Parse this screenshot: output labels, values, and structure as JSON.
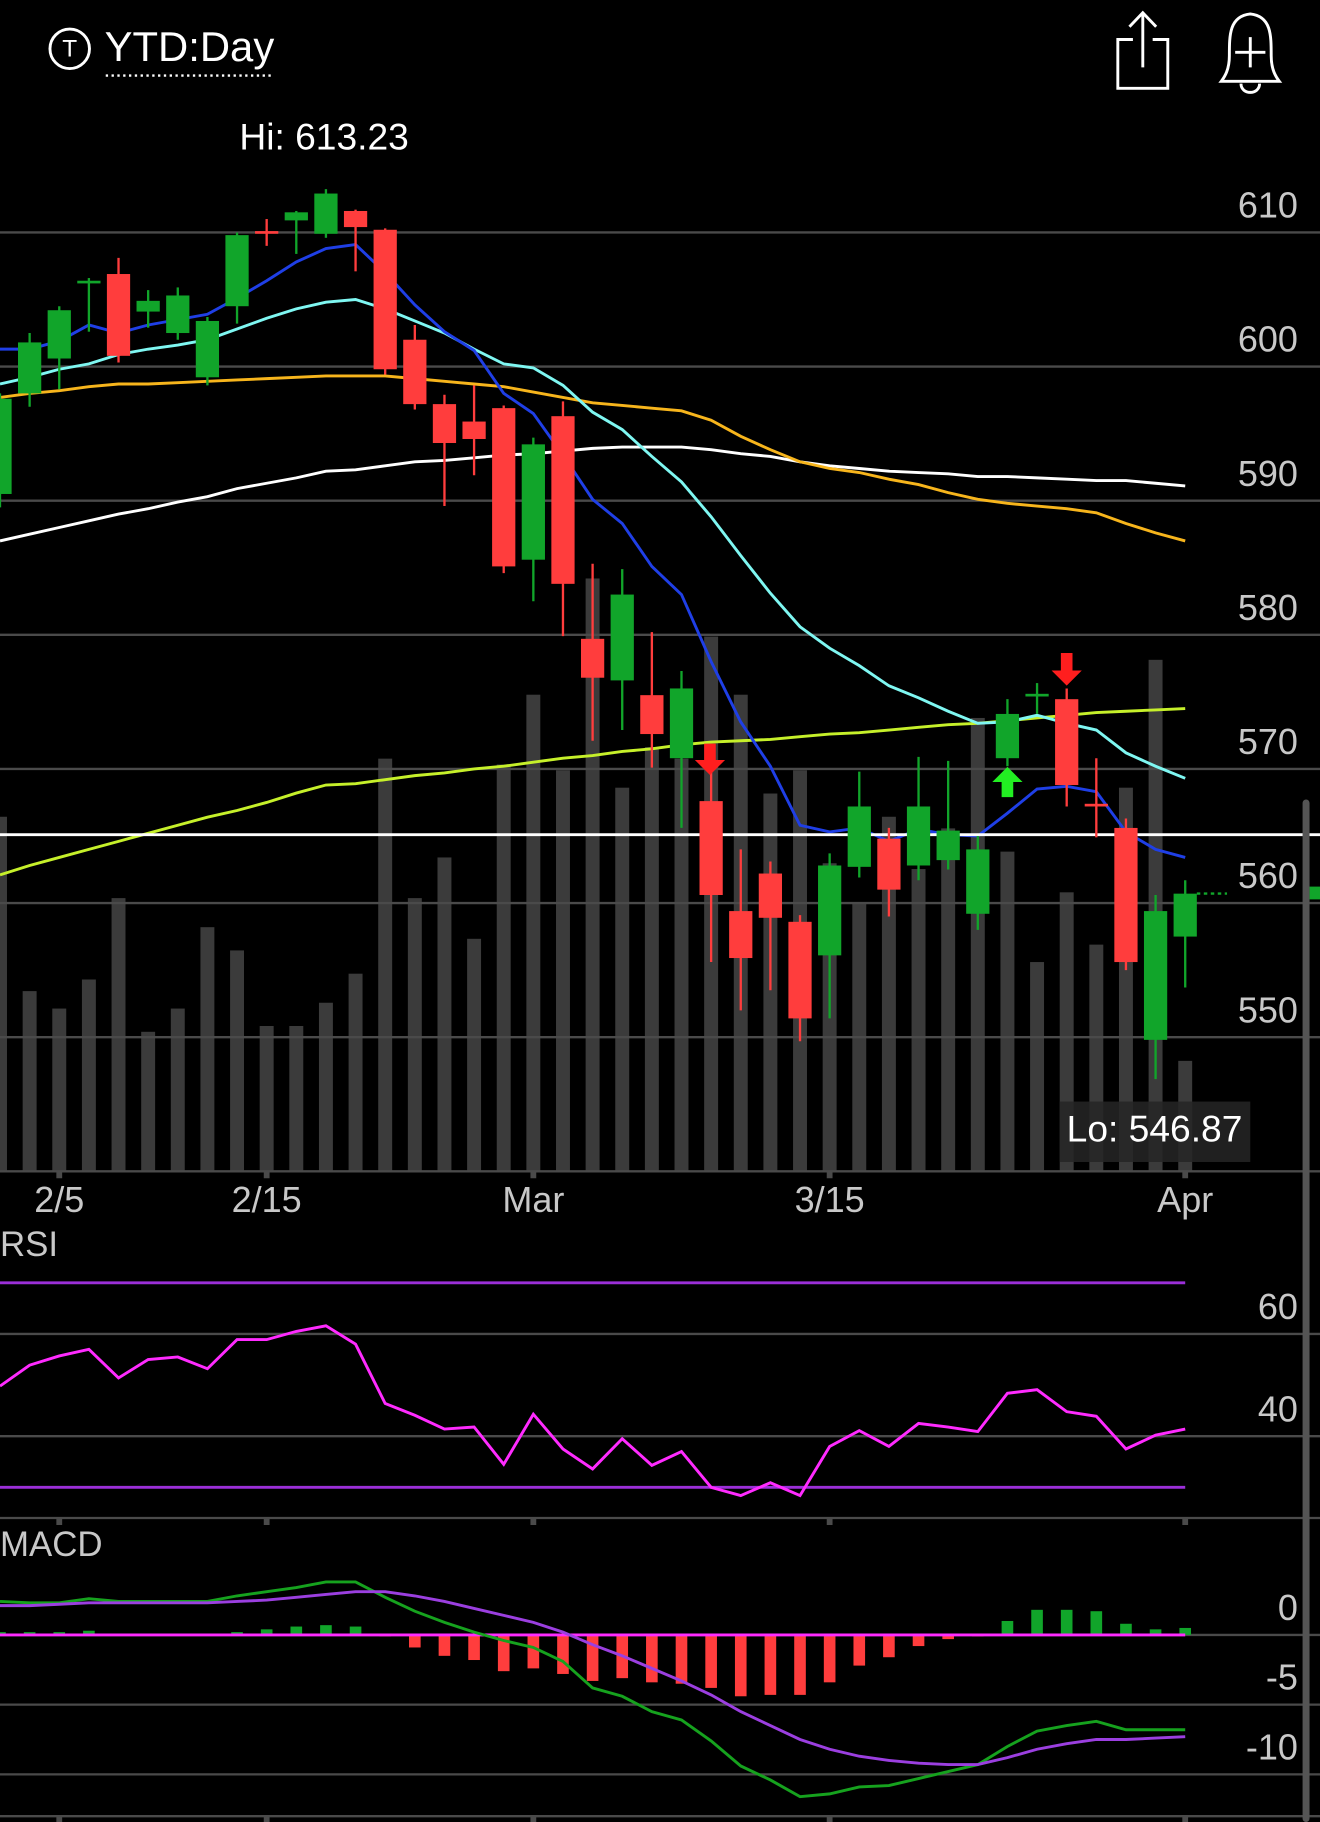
{
  "header": {
    "badge": "T",
    "title": "YTD:Day"
  },
  "chart_data": [
    {
      "type": "candlestick",
      "categories": [
        null,
        null,
        "2/5",
        null,
        null,
        null,
        null,
        null,
        null,
        "2/15",
        null,
        null,
        null,
        null,
        null,
        null,
        null,
        null,
        "Mar",
        null,
        null,
        null,
        null,
        null,
        null,
        null,
        null,
        null,
        "3/15",
        null,
        null,
        null,
        null,
        null,
        null,
        null,
        null,
        null,
        null,
        null,
        "Apr"
      ],
      "open": [
        590.5,
        598.0,
        600.6,
        606.2,
        606.9,
        604.1,
        602.5,
        599.2,
        604.5,
        610.1,
        610.9,
        609.9,
        611.6,
        610.2,
        602.0,
        597.2,
        595.9,
        596.9,
        585.6,
        596.3,
        579.7,
        576.6,
        575.5,
        570.8,
        567.6,
        559.4,
        562.2,
        558.6,
        556.1,
        562.7,
        564.8,
        562.8,
        563.2,
        559.2,
        570.8,
        575.4,
        575.2,
        567.4,
        565.6,
        549.8,
        557.5
      ],
      "high": [
        598.0,
        602.5,
        604.5,
        606.6,
        608.1,
        605.7,
        605.9,
        603.7,
        610.0,
        611.0,
        611.6,
        613.23,
        611.7,
        610.3,
        603.1,
        597.9,
        598.6,
        597.1,
        594.7,
        597.4,
        585.3,
        584.9,
        580.2,
        577.3,
        570.2,
        564.0,
        563.1,
        559.1,
        563.7,
        569.8,
        565.6,
        570.9,
        570.6,
        565.0,
        575.2,
        576.4,
        576.0,
        570.8,
        566.3,
        560.6,
        561.7
      ],
      "low": [
        589.5,
        597.0,
        598.3,
        602.6,
        600.3,
        602.9,
        602.0,
        598.6,
        603.2,
        609.0,
        608.4,
        609.6,
        607.1,
        599.4,
        596.8,
        589.6,
        591.9,
        584.6,
        582.5,
        579.9,
        572.1,
        572.9,
        570.1,
        565.6,
        555.6,
        552.0,
        553.5,
        549.7,
        551.4,
        561.9,
        559.0,
        561.7,
        562.5,
        558.0,
        570.2,
        574.1,
        567.2,
        564.9,
        555.0,
        546.87,
        553.7
      ],
      "close": [
        597.6,
        601.8,
        604.2,
        606.4,
        600.8,
        604.9,
        605.3,
        603.4,
        609.8,
        609.9,
        611.5,
        612.9,
        610.4,
        599.8,
        597.2,
        594.3,
        594.6,
        585.1,
        594.2,
        583.8,
        576.8,
        583.0,
        572.6,
        576.0,
        560.6,
        555.9,
        558.9,
        551.4,
        562.8,
        567.2,
        561.0,
        567.2,
        565.4,
        564.0,
        574.1,
        575.6,
        568.8,
        567.2,
        555.6,
        559.4,
        560.7
      ],
      "up_color": "#11a52a",
      "down_color": "#ff3d3d",
      "volume": [
        61,
        31,
        28,
        33,
        47,
        24,
        28,
        42,
        38,
        25,
        25,
        29,
        34,
        71,
        47,
        54,
        40,
        70,
        82,
        69,
        102,
        66,
        73,
        71,
        92,
        82,
        65,
        69,
        53,
        46,
        61,
        52,
        59,
        78,
        55,
        36,
        48,
        39,
        66,
        88,
        19
      ],
      "volume_lim": [
        0,
        180
      ],
      "volume_color": "#3b3b3b",
      "moving_averages": [
        {
          "color": "#ffffff",
          "values": [
            587.0,
            587.5,
            588.0,
            588.5,
            589.0,
            589.4,
            589.9,
            590.3,
            590.9,
            591.3,
            591.7,
            592.2,
            592.3,
            592.6,
            592.9,
            593.0,
            593.2,
            593.4,
            593.5,
            593.7,
            593.9,
            594.0,
            594.0,
            594.0,
            593.8,
            593.5,
            593.3,
            592.9,
            592.6,
            592.4,
            592.2,
            592.1,
            592.0,
            591.8,
            591.8,
            591.7,
            591.6,
            591.5,
            591.5,
            591.3,
            591.1
          ]
        },
        {
          "color": "#c6f02a",
          "values": [
            562.1,
            562.8,
            563.4,
            564.0,
            564.6,
            565.2,
            565.8,
            566.4,
            566.9,
            567.5,
            568.2,
            568.8,
            568.9,
            569.2,
            569.5,
            569.7,
            570.0,
            570.2,
            570.5,
            570.8,
            571.0,
            571.3,
            571.5,
            571.8,
            572.0,
            572.1,
            572.2,
            572.4,
            572.6,
            572.7,
            572.9,
            573.1,
            573.3,
            573.4,
            573.6,
            573.8,
            574.0,
            574.2,
            574.3,
            574.4,
            574.5
          ]
        },
        {
          "color": "#f7b51c",
          "values": [
            597.7,
            598.0,
            598.2,
            598.5,
            598.7,
            598.7,
            598.8,
            598.9,
            599.0,
            599.1,
            599.2,
            599.3,
            599.3,
            599.3,
            599.1,
            598.9,
            598.7,
            598.5,
            598.1,
            597.7,
            597.3,
            597.1,
            596.9,
            596.7,
            596.0,
            594.8,
            593.8,
            592.9,
            592.4,
            592.1,
            591.6,
            591.2,
            590.6,
            590.1,
            589.8,
            589.6,
            589.4,
            589.1,
            588.3,
            587.6,
            587.0
          ]
        },
        {
          "color": "#7ff7f2",
          "values": [
            598.7,
            599.2,
            599.8,
            600.2,
            600.9,
            601.3,
            601.6,
            602.0,
            602.8,
            603.6,
            604.3,
            604.8,
            605.0,
            604.3,
            603.4,
            602.5,
            601.3,
            600.2,
            599.9,
            598.6,
            596.6,
            595.3,
            593.3,
            591.4,
            588.8,
            585.9,
            583.1,
            580.6,
            579.0,
            577.7,
            576.2,
            575.3,
            574.3,
            573.4,
            573.5,
            574.0,
            573.4,
            572.9,
            571.2,
            570.2,
            569.3
          ]
        },
        {
          "color": "#1f3fe6",
          "values": [
            601.3,
            601.3,
            601.9,
            603.1,
            602.5,
            603.1,
            603.5,
            603.9,
            605.1,
            606.4,
            607.8,
            608.8,
            609.1,
            607.0,
            604.6,
            602.6,
            601.2,
            598.0,
            596.5,
            593.4,
            590.1,
            588.3,
            585.1,
            583.0,
            578.0,
            573.5,
            570.2,
            565.8,
            565.3,
            565.6,
            564.6,
            565.5,
            565.1,
            565.0,
            566.7,
            568.5,
            568.7,
            568.3,
            565.3,
            564.0,
            563.4
          ]
        }
      ],
      "reference_line": 565.1,
      "hi_label": "Hi: 613.23",
      "lo_label": "Lo: 546.87",
      "ylim": [
        540,
        618
      ],
      "yticks": [
        550,
        560,
        570,
        580,
        590,
        600,
        610
      ],
      "grid": true
    },
    {
      "type": "line",
      "title": "RSI",
      "values": [
        49.8,
        53.9,
        55.7,
        57.0,
        51.4,
        55.0,
        55.5,
        53.2,
        58.9,
        58.9,
        60.5,
        61.6,
        58.0,
        46.4,
        44.1,
        41.4,
        41.8,
        34.5,
        44.3,
        37.5,
        33.6,
        39.5,
        34.3,
        37.0,
        30.0,
        28.4,
        30.9,
        28.4,
        38.0,
        41.1,
        38.0,
        42.5,
        41.8,
        40.9,
        48.4,
        49.1,
        44.8,
        43.9,
        37.5,
        40.2,
        41.4
      ],
      "color": "#ff2bff",
      "levels": [
        70,
        30
      ],
      "level_color": "#9b2fd8",
      "ylim": [
        24,
        80
      ],
      "yticks": [
        40,
        60
      ],
      "grid": true
    },
    {
      "type": "macd",
      "title": "MACD",
      "histogram": [
        0.2,
        0.2,
        0.2,
        0.3,
        0.1,
        0.1,
        0.1,
        0.05,
        0.2,
        0.4,
        0.6,
        0.7,
        0.6,
        -0.1,
        -0.9,
        -1.5,
        -1.8,
        -2.6,
        -2.4,
        -2.8,
        -3.3,
        -3.1,
        -3.4,
        -3.5,
        -3.8,
        -4.4,
        -4.3,
        -4.3,
        -3.4,
        -2.2,
        -1.6,
        -0.8,
        -0.3,
        -0.1,
        1.0,
        1.8,
        1.8,
        1.7,
        0.8,
        0.4,
        0.5
      ],
      "macd": [
        2.4,
        2.3,
        2.3,
        2.6,
        2.4,
        2.4,
        2.4,
        2.4,
        2.8,
        3.1,
        3.4,
        3.8,
        3.8,
        2.7,
        1.7,
        0.9,
        0.2,
        -0.4,
        -0.9,
        -1.9,
        -3.8,
        -4.4,
        -5.5,
        -6.1,
        -7.6,
        -9.4,
        -10.4,
        -11.6,
        -11.4,
        -10.9,
        -10.8,
        -10.3,
        -9.8,
        -9.3,
        -8.0,
        -6.9,
        -6.5,
        -6.2,
        -6.8,
        -6.8,
        -6.8
      ],
      "signal": [
        2.1,
        2.1,
        2.2,
        2.3,
        2.3,
        2.3,
        2.3,
        2.3,
        2.4,
        2.5,
        2.7,
        2.9,
        3.1,
        3.1,
        2.8,
        2.4,
        1.9,
        1.4,
        0.9,
        0.2,
        -0.7,
        -1.5,
        -2.4,
        -3.3,
        -4.3,
        -5.5,
        -6.5,
        -7.5,
        -8.2,
        -8.7,
        -9.0,
        -9.2,
        -9.3,
        -9.3,
        -8.8,
        -8.2,
        -7.8,
        -7.5,
        -7.5,
        -7.4,
        -7.3
      ],
      "up_color": "#11a52a",
      "down_color": "#ff3d3d",
      "macd_color": "#16a21e",
      "signal_color": "#9b3fe0",
      "zero_color": "#ff2bff",
      "ylim": [
        -13,
        7.5
      ],
      "yticks": [
        0,
        -5,
        -10
      ],
      "grid": true
    }
  ]
}
